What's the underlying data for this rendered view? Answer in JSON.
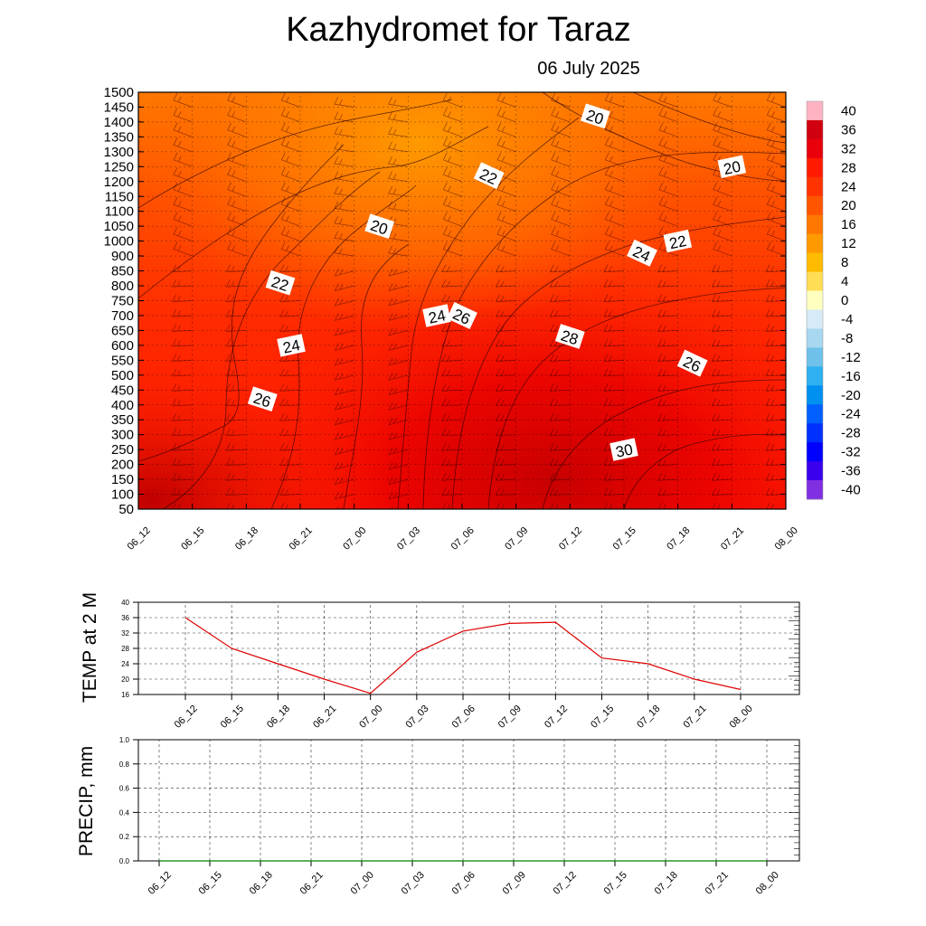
{
  "title": "Kazhydromet  for Taraz",
  "date": "06 July 2025",
  "time_labels": [
    "06_12",
    "06_15",
    "06_18",
    "06_21",
    "07_00",
    "07_03",
    "07_06",
    "07_09",
    "07_12",
    "07_15",
    "07_18",
    "07_21",
    "08_00"
  ],
  "chart_data": [
    {
      "type": "heatmap",
      "title": "Kazhydromet  for Taraz",
      "subtitle": "06 July 2025",
      "x": [
        "06_12",
        "06_15",
        "06_18",
        "06_21",
        "07_00",
        "07_03",
        "07_06",
        "07_09",
        "07_12",
        "07_15",
        "07_18",
        "07_21",
        "08_00"
      ],
      "y_levels": [
        50,
        100,
        150,
        200,
        250,
        300,
        350,
        400,
        450,
        500,
        550,
        600,
        650,
        700,
        750,
        800,
        850,
        900,
        1000,
        1050,
        1100,
        1150,
        1200,
        1250,
        1300,
        1350,
        1400,
        1450,
        1500
      ],
      "y_tick_labels": [
        "50",
        "100",
        "150",
        "200",
        "250",
        "300",
        "350",
        "400",
        "450",
        "500",
        "550",
        "600",
        "650",
        "700",
        "750",
        "800",
        "850",
        "900",
        "1000",
        "1050",
        "1100",
        "1150",
        "1200",
        "1250",
        "1300",
        "1350",
        "1400",
        "1450",
        "1500"
      ],
      "colorbar": {
        "labels": [
          "40",
          "36",
          "32",
          "28",
          "24",
          "20",
          "16",
          "12",
          "8",
          "4",
          "0",
          "-4",
          "-8",
          "-12",
          "-16",
          "-20",
          "-24",
          "-28",
          "-32",
          "-36",
          "-40"
        ],
        "colors": [
          "#ffb3c2",
          "#d0000e",
          "#e8000a",
          "#ff1a00",
          "#ff3300",
          "#ff5500",
          "#ff7700",
          "#ff9900",
          "#ffbb00",
          "#ffdd55",
          "#ffffc0",
          "#d6eaf8",
          "#a8d8f0",
          "#6ec1ea",
          "#2fb0f0",
          "#0090f0",
          "#0060ff",
          "#0030ff",
          "#0000ff",
          "#3a00ee",
          "#8030e0"
        ],
        "range": [
          -40,
          40
        ]
      },
      "contour_labels": [
        {
          "text": "20",
          "time": "07_12",
          "level": 1420
        },
        {
          "text": "20",
          "time": "07_21",
          "level": 1250
        },
        {
          "text": "22",
          "time": "07_09",
          "level": 1220
        },
        {
          "text": "20",
          "time": "07_00",
          "level": 1050
        },
        {
          "text": "22",
          "time": "07_21",
          "level": 1000
        },
        {
          "text": "24",
          "time": "07_15",
          "level": 920
        },
        {
          "text": "22",
          "time": "06_21",
          "level": 810
        },
        {
          "text": "24",
          "time": "07_06",
          "level": 700
        },
        {
          "text": "26",
          "time": "07_06",
          "level": 700
        },
        {
          "text": "28",
          "time": "07_12",
          "level": 630
        },
        {
          "text": "24",
          "time": "06_21",
          "level": 600
        },
        {
          "text": "26",
          "time": "07_18",
          "level": 540
        },
        {
          "text": "26",
          "time": "06_18",
          "level": 420
        },
        {
          "text": "30",
          "time": "07_15",
          "level": 250
        }
      ]
    },
    {
      "type": "line",
      "ylabel": "TEMP at 2 M",
      "x": [
        "06_12",
        "06_15",
        "06_18",
        "06_21",
        "07_00",
        "07_03",
        "07_06",
        "07_09",
        "07_12",
        "07_15",
        "07_18",
        "07_21",
        "08_00"
      ],
      "series": [
        {
          "values": [
            36,
            28,
            24,
            20,
            16.3,
            27,
            32.5,
            34.5,
            34.8,
            25.5,
            24,
            20,
            17.3
          ]
        }
      ],
      "ylim": [
        16,
        40
      ],
      "yticks": [
        "16",
        "20",
        "24",
        "28",
        "32",
        "36",
        "40"
      ],
      "grid": true,
      "color": "#e00000"
    },
    {
      "type": "line",
      "ylabel": "PRECIP, mm",
      "x": [
        "06_12",
        "06_15",
        "06_18",
        "06_21",
        "07_00",
        "07_03",
        "07_06",
        "07_09",
        "07_12",
        "07_15",
        "07_18",
        "07_21",
        "08_00"
      ],
      "series": [
        {
          "values": [
            0,
            0,
            0,
            0,
            0,
            0,
            0,
            0,
            0,
            0,
            0,
            0,
            0
          ]
        }
      ],
      "ylim": [
        0,
        1.0
      ],
      "yticks": [
        "0.0",
        "0.2",
        "0.4",
        "0.6",
        "0.8",
        "1.0"
      ],
      "grid": true,
      "color": "#008000"
    }
  ]
}
